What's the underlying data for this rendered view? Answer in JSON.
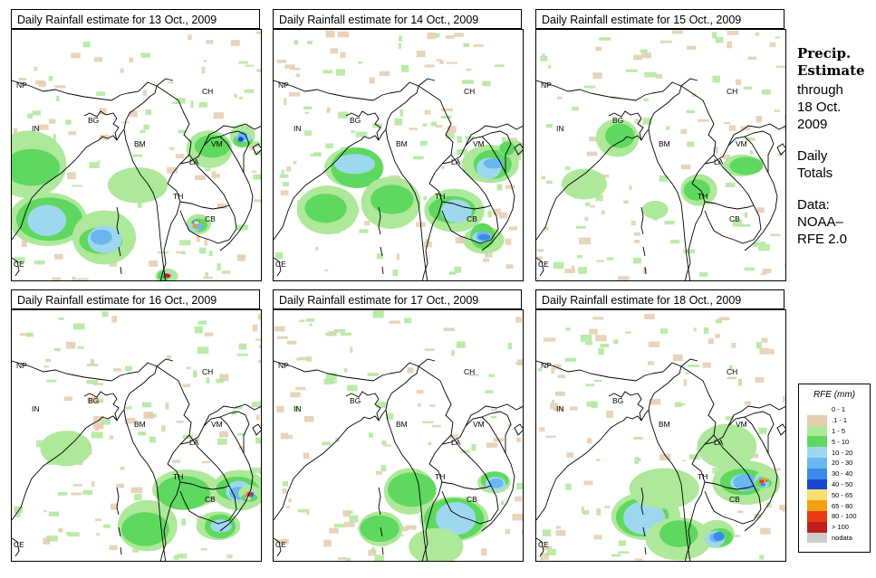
{
  "panels": [
    {
      "title": "Daily Rainfall estimate for  13 Oct., 2009"
    },
    {
      "title": "Daily Rainfall estimate for  14 Oct., 2009"
    },
    {
      "title": "Daily Rainfall estimate for  15 Oct., 2009"
    },
    {
      "title": "Daily Rainfall estimate for  16 Oct., 2009"
    },
    {
      "title": "Daily Rainfall estimate for  17 Oct., 2009"
    },
    {
      "title": "Daily Rainfall estimate for  18 Oct., 2009"
    }
  ],
  "map_labels": {
    "np": "NP",
    "ch": "CH",
    "in": "IN",
    "bg": "BG",
    "bm": "BM",
    "vm": "VM",
    "la": "LA",
    "th": "TH",
    "cb": "CB",
    "ce": "CE"
  },
  "sidebar": {
    "head1": "Precip.",
    "head2": "Estimate",
    "through": "through",
    "date1": "18 Oct.",
    "date2": "2009",
    "daily": "Daily",
    "totals": "Totals",
    "data_label": "Data:",
    "noaa": "NOAA–",
    "rfe": "RFE 2.0"
  },
  "legend": {
    "title": "RFE (mm)",
    "items": [
      {
        "label": "0 - 1",
        "color": "#ffffff"
      },
      {
        "label": ".1 - 1",
        "color": "#e4cdb0"
      },
      {
        "label": "1 - 5",
        "color": "#aee89a"
      },
      {
        "label": "5 - 10",
        "color": "#5ed85e"
      },
      {
        "label": "10 - 20",
        "color": "#9ed8ee"
      },
      {
        "label": "20 - 30",
        "color": "#6ab6ee"
      },
      {
        "label": "30 - 40",
        "color": "#3a8ce8"
      },
      {
        "label": "40 - 50",
        "color": "#1a46d2"
      },
      {
        "label": "50 - 65",
        "color": "#f6e070"
      },
      {
        "label": "65 - 80",
        "color": "#f4a012"
      },
      {
        "label": "80 - 100",
        "color": "#e83c10"
      },
      {
        "label": "> 100",
        "color": "#be1e1e"
      },
      {
        "label": "nodata",
        "color": "#cccccc"
      }
    ]
  }
}
